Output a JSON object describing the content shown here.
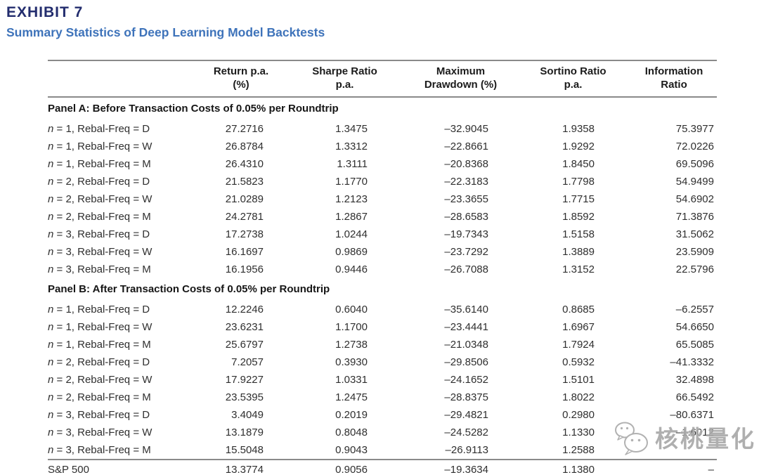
{
  "header": {
    "exhibit": "EXHIBIT 7",
    "subtitle": "Summary Statistics of Deep Learning Model Backtests"
  },
  "colors": {
    "exhibit_title": "#232d6e",
    "subtitle": "#3e73ba",
    "rule": "#8a8a8a",
    "body_text": "#2f2f2f"
  },
  "table": {
    "columns": [
      {
        "line1": "Return p.a.",
        "line2": "(%)"
      },
      {
        "line1": "Sharpe Ratio",
        "line2": "p.a."
      },
      {
        "line1": "Maximum",
        "line2": "Drawdown (%)"
      },
      {
        "line1": "Sortino Ratio",
        "line2": "p.a."
      },
      {
        "line1": "Information",
        "line2": "Ratio"
      }
    ],
    "panels": [
      {
        "title": "Panel A: Before Transaction Costs of 0.05% per Roundtrip",
        "rows": [
          {
            "label_var": "n",
            "label_rest": " = 1, Rebal-Freq = D",
            "values": [
              "27.2716",
              "1.3475",
              "–32.9045",
              "1.9358",
              "75.3977"
            ]
          },
          {
            "label_var": "n",
            "label_rest": " = 1, Rebal-Freq = W",
            "values": [
              "26.8784",
              "1.3312",
              "–22.8661",
              "1.9292",
              "72.0226"
            ]
          },
          {
            "label_var": "n",
            "label_rest": " = 1, Rebal-Freq = M",
            "values": [
              "26.4310",
              "1.3111",
              "–20.8368",
              "1.8450",
              "69.5096"
            ]
          },
          {
            "label_var": "n",
            "label_rest": " = 2, Rebal-Freq = D",
            "values": [
              "21.5823",
              "1.1770",
              "–22.3183",
              "1.7798",
              "54.9499"
            ]
          },
          {
            "label_var": "n",
            "label_rest": " = 2, Rebal-Freq = W",
            "values": [
              "21.0289",
              "1.2123",
              "–23.3655",
              "1.7715",
              "54.6902"
            ]
          },
          {
            "label_var": "n",
            "label_rest": " = 2, Rebal-Freq = M",
            "values": [
              "24.2781",
              "1.2867",
              "–28.6583",
              "1.8592",
              "71.3876"
            ]
          },
          {
            "label_var": "n",
            "label_rest": " = 3, Rebal-Freq = D",
            "values": [
              "17.2738",
              "1.0244",
              "–19.7343",
              "1.5158",
              "31.5062"
            ]
          },
          {
            "label_var": "n",
            "label_rest": " = 3, Rebal-Freq = W",
            "values": [
              "16.1697",
              "0.9869",
              "–23.7292",
              "1.3889",
              "23.5909"
            ]
          },
          {
            "label_var": "n",
            "label_rest": " = 3, Rebal-Freq = M",
            "values": [
              "16.1956",
              "0.9446",
              "–26.7088",
              "1.3152",
              "22.5796"
            ]
          }
        ]
      },
      {
        "title": "Panel B: After Transaction Costs of 0.05% per Roundtrip",
        "rows": [
          {
            "label_var": "n",
            "label_rest": " = 1, Rebal-Freq = D",
            "values": [
              "12.2246",
              "0.6040",
              "–35.6140",
              "0.8685",
              "–6.2557"
            ]
          },
          {
            "label_var": "n",
            "label_rest": " = 1, Rebal-Freq = W",
            "values": [
              "23.6231",
              "1.1700",
              "–23.4441",
              "1.6967",
              "54.6650"
            ]
          },
          {
            "label_var": "n",
            "label_rest": " = 1, Rebal-Freq = M",
            "values": [
              "25.6797",
              "1.2738",
              "–21.0348",
              "1.7924",
              "65.5085"
            ]
          },
          {
            "label_var": "n",
            "label_rest": " = 2, Rebal-Freq = D",
            "values": [
              "7.2057",
              "0.3930",
              "–29.8506",
              "0.5932",
              "–41.3332"
            ]
          },
          {
            "label_var": "n",
            "label_rest": " = 2, Rebal-Freq = W",
            "values": [
              "17.9227",
              "1.0331",
              "–24.1652",
              "1.5101",
              "32.4898"
            ]
          },
          {
            "label_var": "n",
            "label_rest": " = 2, Rebal-Freq = M",
            "values": [
              "23.5395",
              "1.2475",
              "–28.8375",
              "1.8022",
              "66.5492"
            ]
          },
          {
            "label_var": "n",
            "label_rest": " = 3, Rebal-Freq = D",
            "values": [
              "3.4049",
              "0.2019",
              "–29.4821",
              "0.2980",
              "–80.6371"
            ]
          },
          {
            "label_var": "n",
            "label_rest": " = 3, Rebal-Freq = W",
            "values": [
              "13.1879",
              "0.8048",
              "–24.5282",
              "1.1330",
              "–1.6012"
            ]
          },
          {
            "label_var": "n",
            "label_rest": " = 3, Rebal-Freq = M",
            "values": [
              "15.5048",
              "0.9043",
              "–26.9113",
              "1.2588",
              ""
            ]
          }
        ]
      }
    ],
    "footer_row": {
      "label": "S&P 500",
      "values": [
        "13.3774",
        "0.9056",
        "–19.3634",
        "1.1380",
        "–"
      ]
    }
  },
  "watermark": {
    "icon": "wechat-icon",
    "text": "核桃量化"
  }
}
